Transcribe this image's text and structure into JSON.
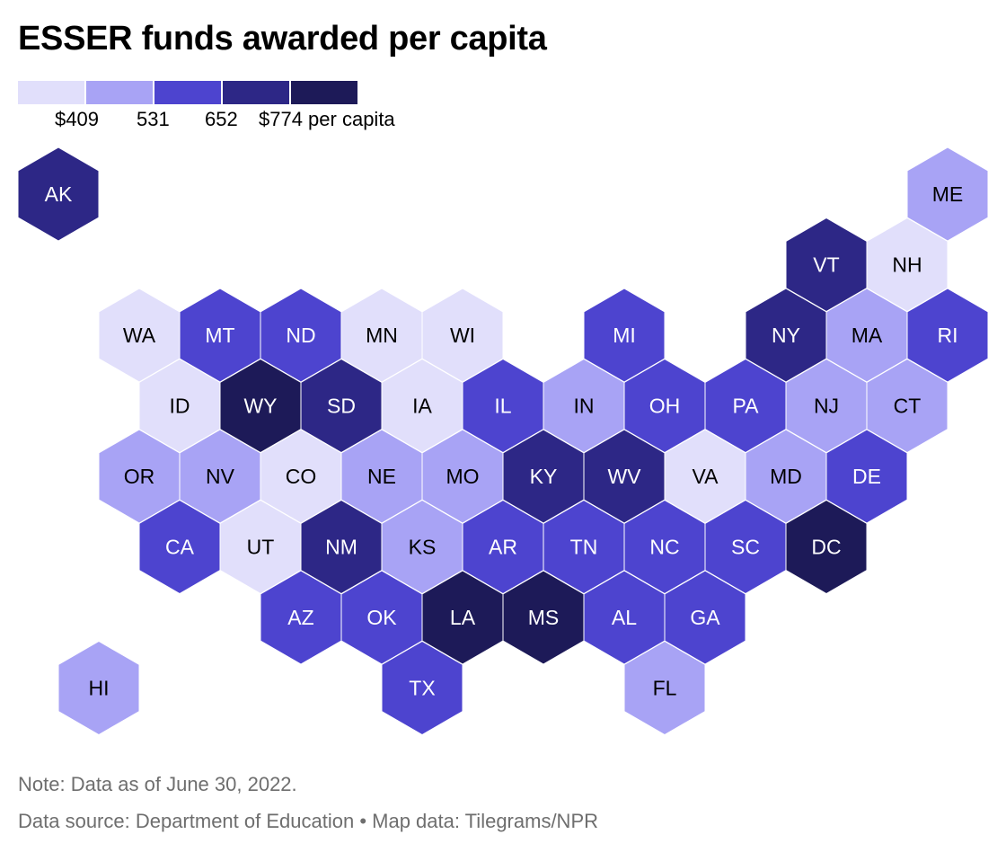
{
  "title": "ESSER funds awarded per capita",
  "legend": {
    "bins": [
      {
        "color": "#e1dffb"
      },
      {
        "color": "#a8a3f5"
      },
      {
        "color": "#4d44cf"
      },
      {
        "color": "#2d2786"
      },
      {
        "color": "#1d1a58"
      }
    ],
    "ticks": [
      "$409",
      "531",
      "652",
      "$774 per capita"
    ]
  },
  "map": {
    "type": "hex-tilegram",
    "states": [
      {
        "abbr": "AK",
        "row": 0,
        "col": 0,
        "bin": 3
      },
      {
        "abbr": "ME",
        "row": 0,
        "col": 11,
        "bin": 1
      },
      {
        "abbr": "VT",
        "row": 1,
        "col": 9.5,
        "bin": 3
      },
      {
        "abbr": "NH",
        "row": 1,
        "col": 10.5,
        "bin": 0
      },
      {
        "abbr": "WA",
        "row": 2,
        "col": 1,
        "bin": 0
      },
      {
        "abbr": "MT",
        "row": 2,
        "col": 2,
        "bin": 2
      },
      {
        "abbr": "ND",
        "row": 2,
        "col": 3,
        "bin": 2
      },
      {
        "abbr": "MN",
        "row": 2,
        "col": 4,
        "bin": 0
      },
      {
        "abbr": "WI",
        "row": 2,
        "col": 5,
        "bin": 0
      },
      {
        "abbr": "MI",
        "row": 2,
        "col": 7,
        "bin": 2
      },
      {
        "abbr": "NY",
        "row": 2,
        "col": 9,
        "bin": 3
      },
      {
        "abbr": "MA",
        "row": 2,
        "col": 10,
        "bin": 1
      },
      {
        "abbr": "RI",
        "row": 2,
        "col": 11,
        "bin": 2
      },
      {
        "abbr": "ID",
        "row": 3,
        "col": 1.5,
        "bin": 0
      },
      {
        "abbr": "WY",
        "row": 3,
        "col": 2.5,
        "bin": 4
      },
      {
        "abbr": "SD",
        "row": 3,
        "col": 3.5,
        "bin": 3
      },
      {
        "abbr": "IA",
        "row": 3,
        "col": 4.5,
        "bin": 0
      },
      {
        "abbr": "IL",
        "row": 3,
        "col": 5.5,
        "bin": 2
      },
      {
        "abbr": "IN",
        "row": 3,
        "col": 6.5,
        "bin": 1
      },
      {
        "abbr": "OH",
        "row": 3,
        "col": 7.5,
        "bin": 2
      },
      {
        "abbr": "PA",
        "row": 3,
        "col": 8.5,
        "bin": 2
      },
      {
        "abbr": "NJ",
        "row": 3,
        "col": 9.5,
        "bin": 1
      },
      {
        "abbr": "CT",
        "row": 3,
        "col": 10.5,
        "bin": 1
      },
      {
        "abbr": "OR",
        "row": 4,
        "col": 1,
        "bin": 1
      },
      {
        "abbr": "NV",
        "row": 4,
        "col": 2,
        "bin": 1
      },
      {
        "abbr": "CO",
        "row": 4,
        "col": 3,
        "bin": 0
      },
      {
        "abbr": "NE",
        "row": 4,
        "col": 4,
        "bin": 1
      },
      {
        "abbr": "MO",
        "row": 4,
        "col": 5,
        "bin": 1
      },
      {
        "abbr": "KY",
        "row": 4,
        "col": 6,
        "bin": 3
      },
      {
        "abbr": "WV",
        "row": 4,
        "col": 7,
        "bin": 3
      },
      {
        "abbr": "VA",
        "row": 4,
        "col": 8,
        "bin": 0
      },
      {
        "abbr": "MD",
        "row": 4,
        "col": 9,
        "bin": 1
      },
      {
        "abbr": "DE",
        "row": 4,
        "col": 10,
        "bin": 2
      },
      {
        "abbr": "CA",
        "row": 5,
        "col": 1.5,
        "bin": 2
      },
      {
        "abbr": "UT",
        "row": 5,
        "col": 2.5,
        "bin": 0
      },
      {
        "abbr": "NM",
        "row": 5,
        "col": 3.5,
        "bin": 3
      },
      {
        "abbr": "KS",
        "row": 5,
        "col": 4.5,
        "bin": 1
      },
      {
        "abbr": "AR",
        "row": 5,
        "col": 5.5,
        "bin": 2
      },
      {
        "abbr": "TN",
        "row": 5,
        "col": 6.5,
        "bin": 2
      },
      {
        "abbr": "NC",
        "row": 5,
        "col": 7.5,
        "bin": 2
      },
      {
        "abbr": "SC",
        "row": 5,
        "col": 8.5,
        "bin": 2
      },
      {
        "abbr": "DC",
        "row": 5,
        "col": 9.5,
        "bin": 4
      },
      {
        "abbr": "AZ",
        "row": 6,
        "col": 3,
        "bin": 2
      },
      {
        "abbr": "OK",
        "row": 6,
        "col": 4,
        "bin": 2
      },
      {
        "abbr": "LA",
        "row": 6,
        "col": 5,
        "bin": 4
      },
      {
        "abbr": "MS",
        "row": 6,
        "col": 6,
        "bin": 4
      },
      {
        "abbr": "AL",
        "row": 6,
        "col": 7,
        "bin": 2
      },
      {
        "abbr": "GA",
        "row": 6,
        "col": 8,
        "bin": 2
      },
      {
        "abbr": "HI",
        "row": 7,
        "col": 0.5,
        "bin": 1
      },
      {
        "abbr": "TX",
        "row": 7,
        "col": 4.5,
        "bin": 2
      },
      {
        "abbr": "FL",
        "row": 7,
        "col": 7.5,
        "bin": 1
      }
    ]
  },
  "footer": {
    "note": "Note: Data as of June 30, 2022.",
    "source": "Data source: Department of Education • Map data: Tilegrams/NPR"
  }
}
